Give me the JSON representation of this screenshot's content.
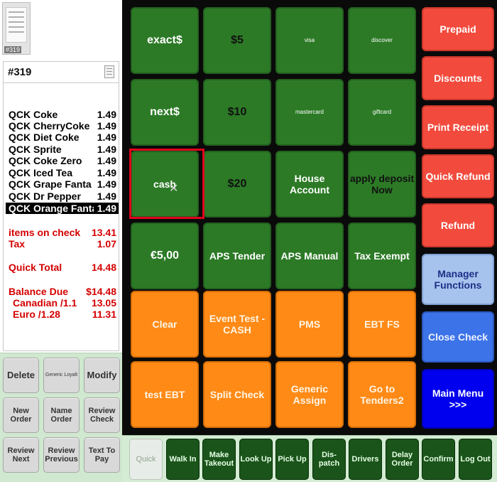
{
  "thumbnail": {
    "label": "#319"
  },
  "check": {
    "number": "#319",
    "items": [
      {
        "name": "QCK Coke",
        "price": "1.49"
      },
      {
        "name": "QCK CherryCoke",
        "price": "1.49"
      },
      {
        "name": "QCK Diet Coke",
        "price": "1.49"
      },
      {
        "name": "QCK Sprite",
        "price": "1.49"
      },
      {
        "name": "QCK Coke Zero",
        "price": "1.49"
      },
      {
        "name": "QCK Iced Tea",
        "price": "1.49"
      },
      {
        "name": "QCK Grape Fanta",
        "price": "1.49"
      },
      {
        "name": "QCK Dr Pepper",
        "price": "1.49"
      },
      {
        "name": "QCK Orange Fanta",
        "price": "1.49",
        "selected": true
      }
    ],
    "totals": {
      "items_on_check": {
        "label": "items on check",
        "value": "13.41"
      },
      "tax": {
        "label": "Tax",
        "value": "1.07"
      },
      "quick_total": {
        "label": "Quick Total",
        "value": "14.48"
      },
      "balance_due": {
        "label": "Balance Due",
        "value": "$14.48"
      },
      "canadian": {
        "label": "Canadian /1.1",
        "value": "13.05"
      },
      "euro": {
        "label": "Euro /1.28",
        "value": "11.31"
      }
    }
  },
  "left_buttons": {
    "delete": "Delete",
    "generic_loyalty": "Generic Loyalt",
    "modify": "Modify",
    "new_order": "New Order",
    "name_order": "Name Order",
    "review_check": "Review Check",
    "review_next": "Review Next",
    "review_previous": "Review Previous",
    "text_to_pay": "Text To Pay"
  },
  "tender_grid": {
    "exact": "exact$",
    "five": "$5",
    "visa": "visa",
    "discover": "discover",
    "next": "next$",
    "ten": "$10",
    "mastercard": "mastercard",
    "giftcard": "giftcard",
    "cash": "cash",
    "twenty": "$20",
    "house_account": "House Account",
    "apply_deposit": "apply deposit Now",
    "euro5": "€5,00",
    "aps_tender": "APS Tender",
    "aps_manual": "APS Manual",
    "tax_exempt": "Tax Exempt",
    "clear": "Clear",
    "event_test_cash": "Event Test - CASH",
    "pms": "PMS",
    "ebt_fs": "EBT FS",
    "test_ebt": "test EBT",
    "split_check": "Split Check",
    "generic_assign": "Generic Assign",
    "go_to_tenders2": "Go to Tenders2"
  },
  "right_buttons": {
    "prepaid": "Prepaid",
    "discounts": "Discounts",
    "print_receipt": "Print Receipt",
    "quick_refund": "Quick Refund",
    "refund": "Refund",
    "manager_functions": "Manager Functions",
    "close_check": "Close Check",
    "main_menu": "Main Menu >>>"
  },
  "bottom_bar": {
    "quick": "Quick",
    "walk_in": "Walk In",
    "make_takeout": "Make Takeout",
    "look_up": "Look Up",
    "pick_up": "Pick Up",
    "dispatch": "Dis-patch",
    "drivers": "Drivers",
    "delay_order": "Delay Order",
    "confirm": "Confirm",
    "log_out": "Log Out"
  },
  "colors": {
    "tile_green": "#2c7a26",
    "tile_orange": "#ff8a16",
    "button_red": "#f24b3d",
    "manager_blue": "#a6c3ee",
    "close_blue": "#3c73e8",
    "main_menu_blue": "#0000ee",
    "total_red": "#d40000",
    "highlight_red": "#e0001b"
  }
}
